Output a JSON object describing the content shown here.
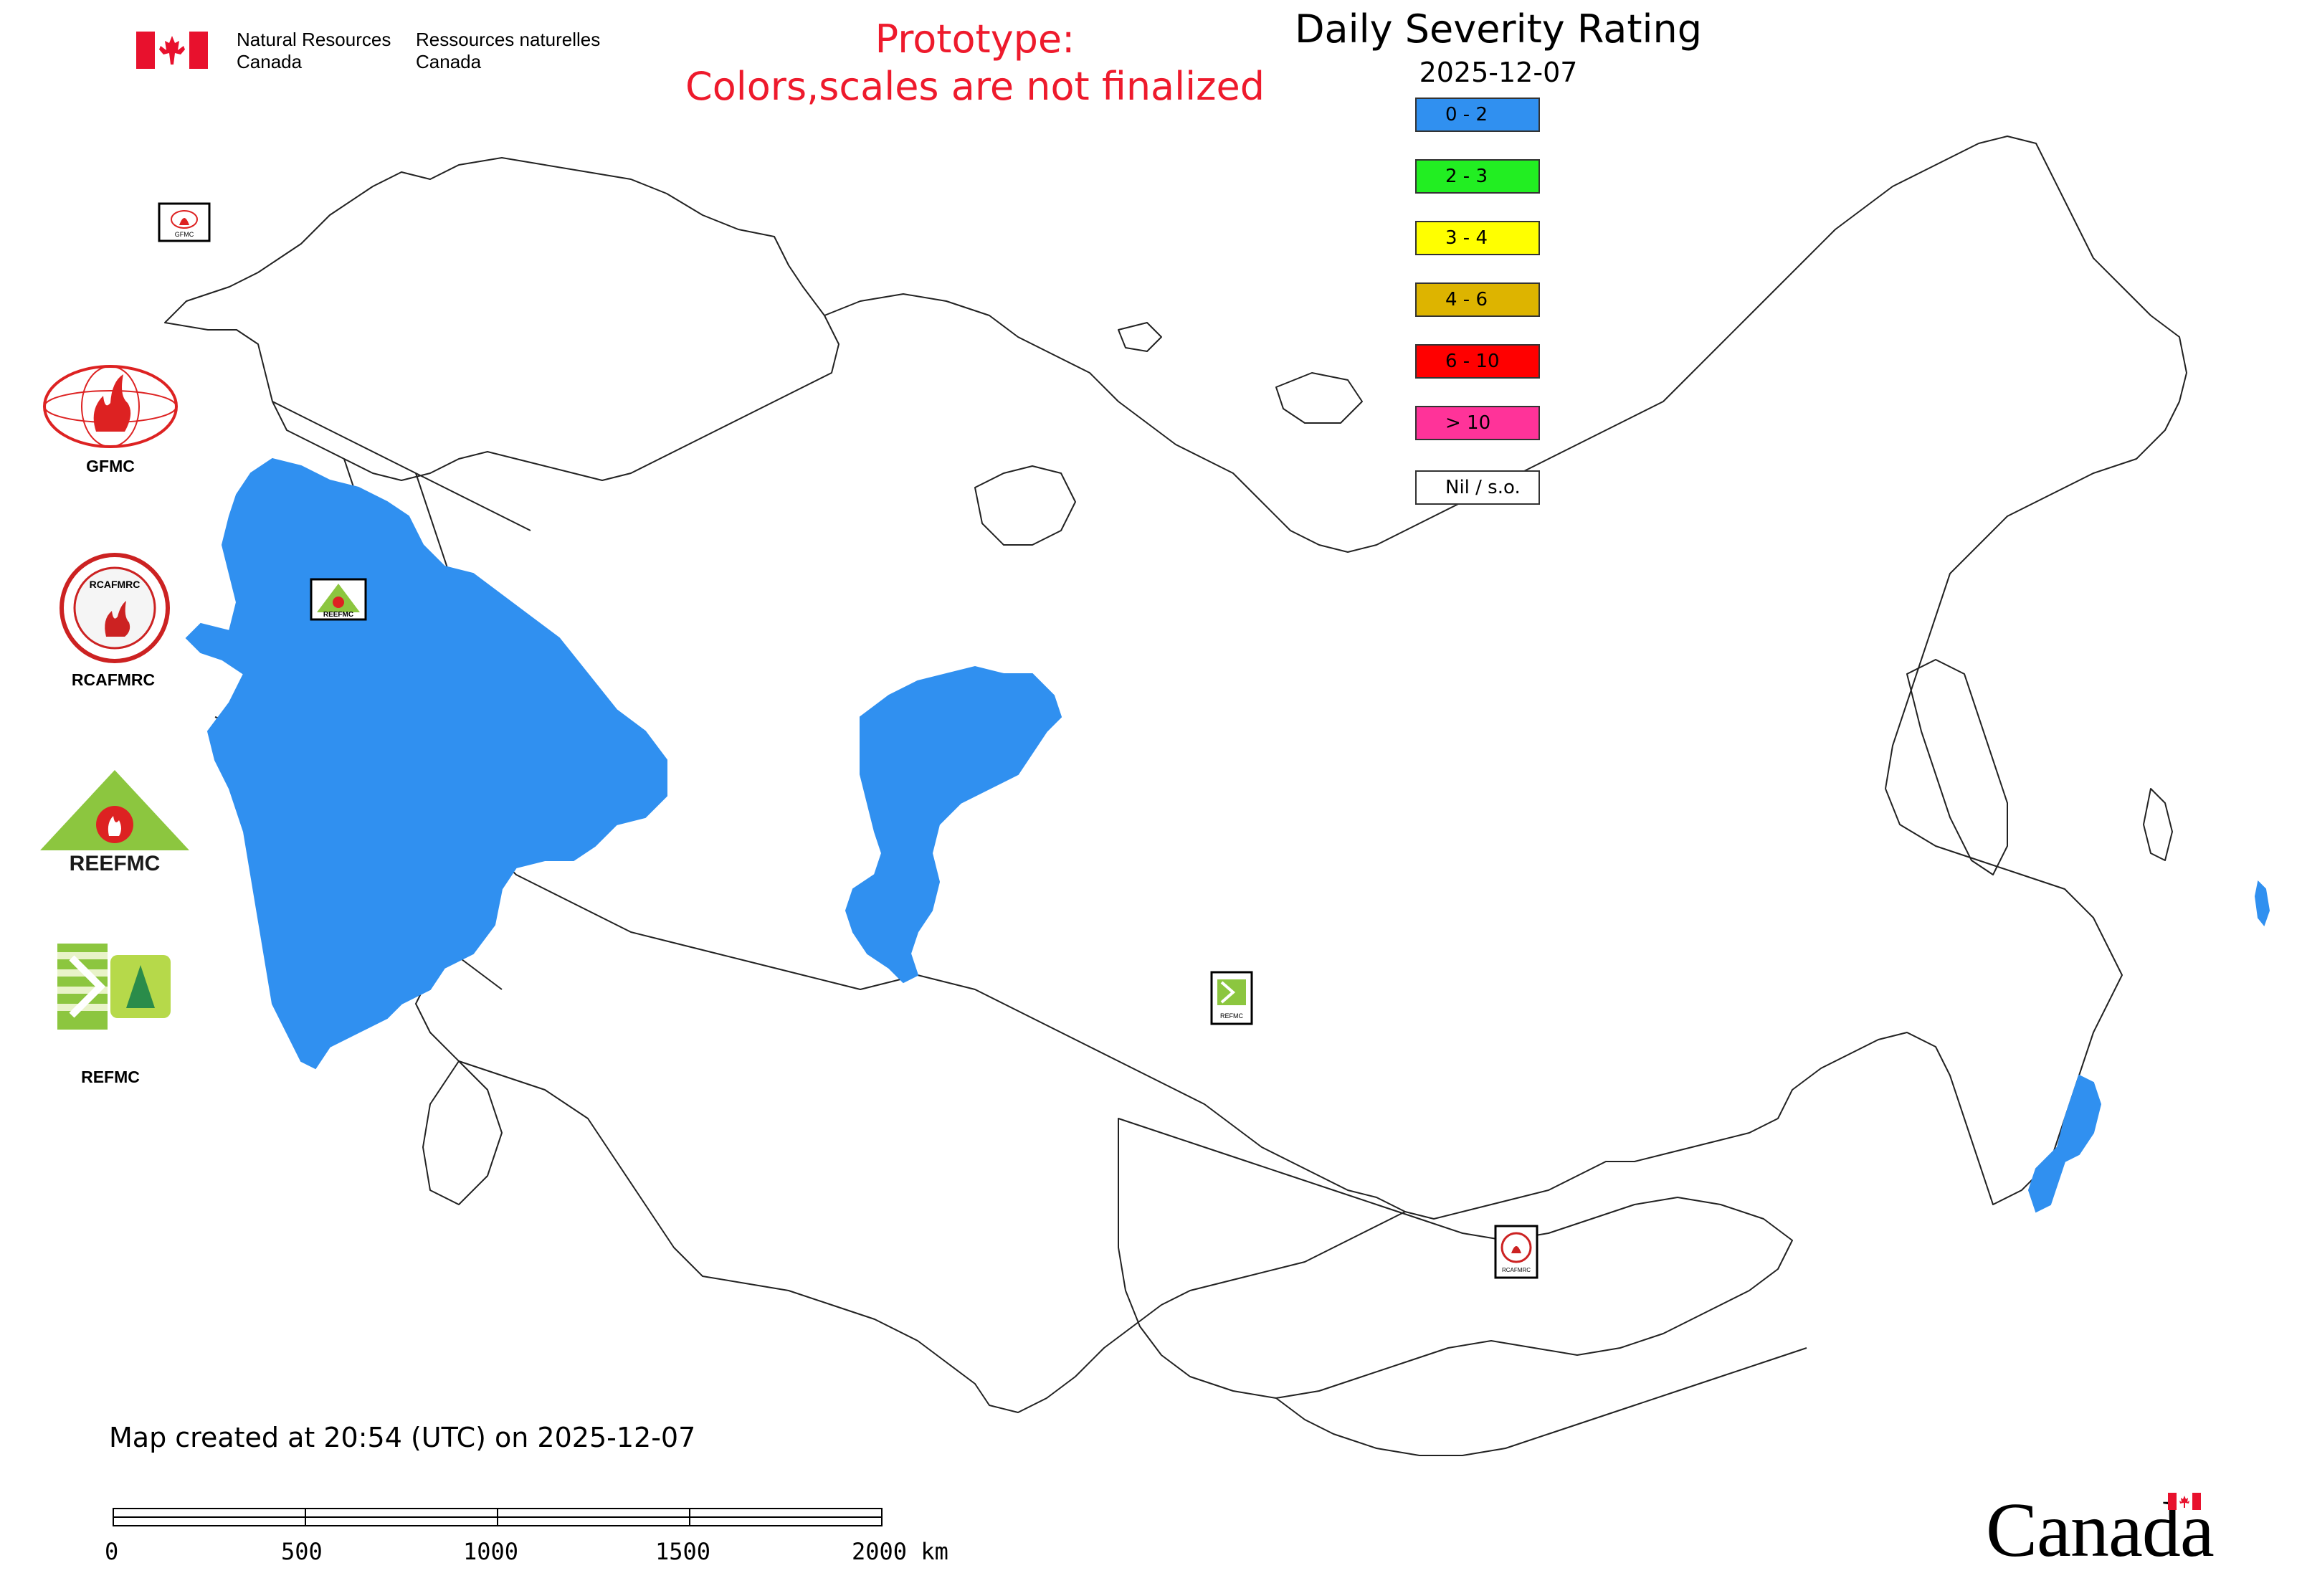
{
  "header": {
    "dept_en": [
      "Natural Resources",
      "Canada"
    ],
    "dept_fr": [
      "Ressources naturelles",
      "Canada"
    ],
    "prototype_notice": [
      "Prototype:",
      "Colors,scales are not finalized"
    ]
  },
  "legend": {
    "title": "Daily Severity Rating",
    "date": "2025-12-07",
    "items": [
      {
        "label": "0 - 2",
        "color": "#3090f0"
      },
      {
        "label": "2 - 3",
        "color": "#22ee22"
      },
      {
        "label": "3 - 4",
        "color": "#ffff00"
      },
      {
        "label": "4 - 6",
        "color": "#ddb400"
      },
      {
        "label": "6 - 10",
        "color": "#ff0000"
      },
      {
        "label": "> 10",
        "color": "#ff3399"
      },
      {
        "label": "Nil / s.o.",
        "color": "#ffffff"
      }
    ]
  },
  "side_logos": [
    {
      "caption": "GFMC",
      "icon": "gfmc-logo"
    },
    {
      "caption": "RCAFMRC",
      "icon": "rcafmrc-logo"
    },
    {
      "caption": "",
      "icon": "reefmc-logo",
      "wordmark": "REEFMC"
    },
    {
      "caption": "REFMC",
      "icon": "refmc-logo"
    }
  ],
  "map": {
    "markers": [
      {
        "label": "GFMC",
        "icon": "gfmc-marker"
      },
      {
        "label": "REEFMC",
        "icon": "reefmc-marker"
      },
      {
        "label": "REFMC",
        "icon": "refmc-marker"
      },
      {
        "label": "RCAFMRC",
        "icon": "rcafmrc-marker"
      }
    ],
    "rating_fill_color": "#3090f0"
  },
  "footer": {
    "created": "Map created at 20:54 (UTC) on 2025-12-07",
    "scale_ticks": [
      "0",
      "500",
      "1000",
      "1500",
      "2000 km"
    ],
    "wordmark": "Canada"
  }
}
